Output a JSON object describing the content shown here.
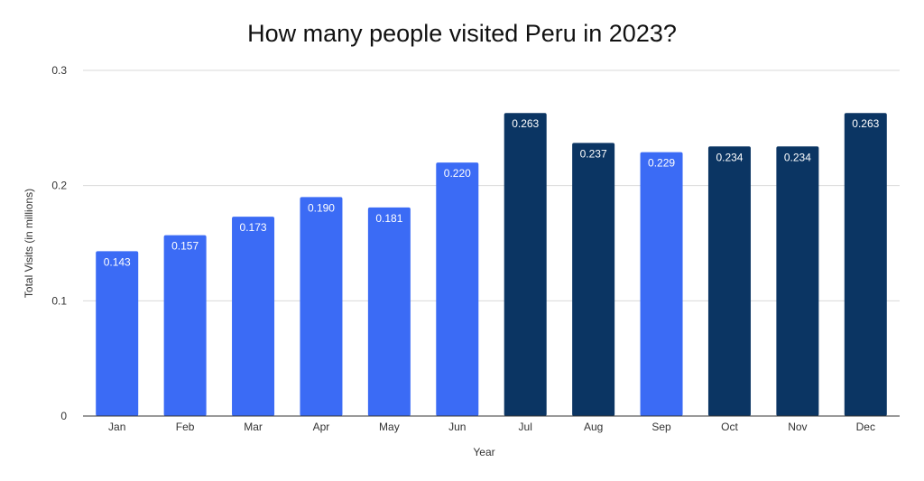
{
  "chart_data": {
    "type": "bar",
    "title": "How many people visited Peru in 2023?",
    "xlabel": "Year",
    "ylabel": "Total Visits (in millions)",
    "ylim": [
      0,
      0.3
    ],
    "yticks": [
      "0",
      "0.1",
      "0.2",
      "0.3"
    ],
    "grid": true,
    "categories": [
      "Jan",
      "Feb",
      "Mar",
      "Apr",
      "May",
      "Jun",
      "Jul",
      "Aug",
      "Sep",
      "Oct",
      "Nov",
      "Dec"
    ],
    "values": [
      0.143,
      0.157,
      0.173,
      0.19,
      0.181,
      0.22,
      0.263,
      0.237,
      0.229,
      0.234,
      0.234,
      0.263
    ],
    "labels": [
      "0.143",
      "0.157",
      "0.173",
      "0.190",
      "0.181",
      "0.220",
      "0.263",
      "0.237",
      "0.229",
      "0.234",
      "0.234",
      "0.263"
    ],
    "bar_colors": [
      "#3b6bf5",
      "#3b6bf5",
      "#3b6bf5",
      "#3b6bf5",
      "#3b6bf5",
      "#3b6bf5",
      "#0b3563",
      "#0b3563",
      "#3b6bf5",
      "#0b3563",
      "#0b3563",
      "#0b3563"
    ]
  }
}
